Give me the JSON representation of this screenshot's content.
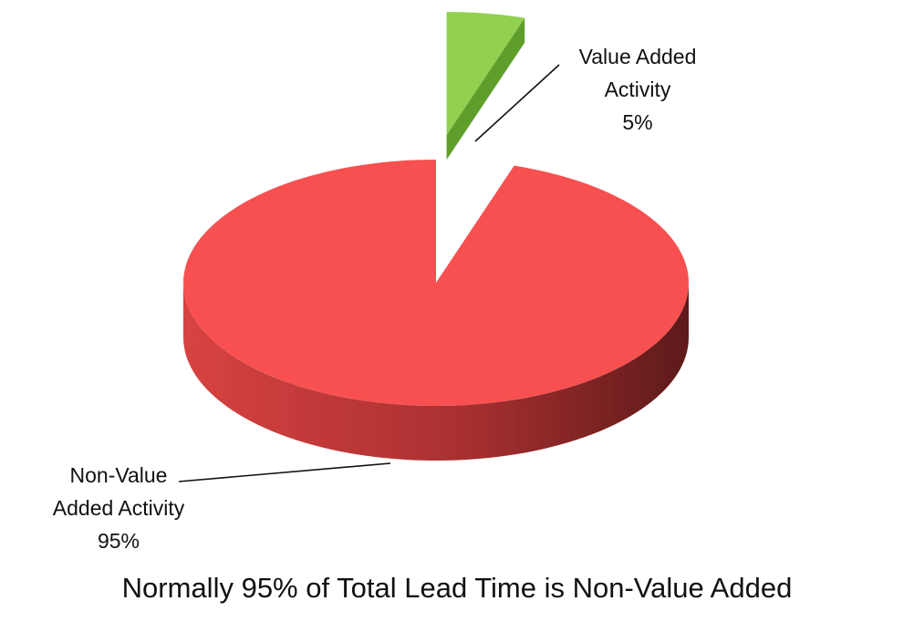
{
  "chart_data": {
    "type": "pie",
    "style": "3d-exploded",
    "title": "Normally 95% of Total Lead Time is Non-Value Added",
    "slices": [
      {
        "label_lines": [
          "Value Added",
          "Activity"
        ],
        "value_label": "5%",
        "value": 5,
        "color": "#92d050",
        "exploded": true
      },
      {
        "label_lines": [
          "Non-Value",
          "Added Activity"
        ],
        "value_label": "95%",
        "value": 95,
        "color": "#f85050",
        "exploded": false
      }
    ],
    "colors": {
      "value_added_top": "#92d050",
      "value_added_side": "#5f9e2a",
      "non_value_top": "#f85050",
      "non_value_side_light": "#d84242",
      "non_value_side_dark": "#5e1a1a",
      "leader_line": "#111111"
    }
  }
}
